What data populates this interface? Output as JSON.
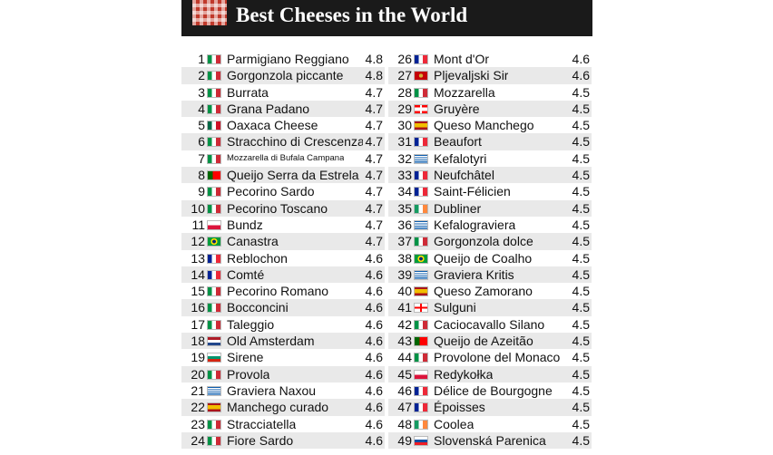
{
  "header": {
    "title": "Best Cheeses in the World"
  },
  "colors": {
    "header_bg": "#1a1a1a",
    "stripe": "#e9e9e9",
    "logo_red": "#c0392b"
  },
  "flags": {
    "IT": "linear-gradient(90deg,#009246 33%,#ffffff 33%,#ffffff 66%,#ce2b37 66%)",
    "FR": "linear-gradient(90deg,#002395 33%,#ffffff 33%,#ffffff 66%,#ed2939 66%)",
    "MX": "linear-gradient(90deg,#006847 33%,#ffffff 33%,#ffffff 66%,#ce1126 66%)",
    "PT": "linear-gradient(90deg,#006600 40%,#ff0000 40%)",
    "PL": "linear-gradient(180deg,#ffffff 50%,#dc143c 50%)",
    "BR": "radial-gradient(circle at 50% 50%,#002776 22%,#fedf00 24%,#fedf00 42%,#009c3b 44%)",
    "NL": "linear-gradient(180deg,#ae1c28 33%,#ffffff 33%,#ffffff 66%,#21468b 66%)",
    "BG": "linear-gradient(180deg,#ffffff 33%,#00966e 33%,#00966e 66%,#d62612 66%)",
    "GR": "repeating-linear-gradient(180deg,#0d5eaf 0px,#0d5eaf 1.2px,#ffffff 1.2px,#ffffff 2.4px)",
    "ES": "linear-gradient(180deg,#aa151b 25%,#f1bf00 25%,#f1bf00 75%,#aa151b 75%)",
    "ME": "radial-gradient(circle,#d4af37 25%,#c40308 28%)",
    "CH": "linear-gradient(90deg,transparent 42%,#ffffff 42%,#ffffff 58%,transparent 58%),linear-gradient(180deg,#ff0000 28%,#ffffff 28%,#ffffff 72%,#ff0000 72%)",
    "IE": "linear-gradient(90deg,#169b62 33%,#ffffff 33%,#ffffff 66%,#ff883e 66%)",
    "GE": "linear-gradient(90deg,transparent 43%,#ff0000 43%,#ff0000 57%,transparent 57%),linear-gradient(180deg,#ffffff 40%,#ff0000 40%,#ff0000 60%,#ffffff 60%)",
    "SK": "linear-gradient(180deg,#ffffff 33%,#0b4ea2 33%,#0b4ea2 66%,#ee1c25 66%)"
  },
  "left_column": [
    {
      "rank": "1",
      "flag": "IT",
      "name": "Parmigiano Reggiano",
      "rating": "4.8"
    },
    {
      "rank": "2",
      "flag": "IT",
      "name": "Gorgonzola piccante",
      "rating": "4.8"
    },
    {
      "rank": "3",
      "flag": "IT",
      "name": "Burrata",
      "rating": "4.7"
    },
    {
      "rank": "4",
      "flag": "IT",
      "name": "Grana Padano",
      "rating": "4.7"
    },
    {
      "rank": "5",
      "flag": "MX",
      "name": "Oaxaca Cheese",
      "rating": "4.7"
    },
    {
      "rank": "6",
      "flag": "IT",
      "name": "Stracchino di Crescenza",
      "rating": "4.7"
    },
    {
      "rank": "7",
      "flag": "IT",
      "name": "Mozzarella di Bufala Campana",
      "rating": "4.7",
      "small": true
    },
    {
      "rank": "8",
      "flag": "PT",
      "name": "Queijo Serra da Estrela",
      "rating": "4.7"
    },
    {
      "rank": "9",
      "flag": "IT",
      "name": "Pecorino Sardo",
      "rating": "4.7"
    },
    {
      "rank": "10",
      "flag": "IT",
      "name": "Pecorino Toscano",
      "rating": "4.7"
    },
    {
      "rank": "11",
      "flag": "PL",
      "name": "Bundz",
      "rating": "4.7"
    },
    {
      "rank": "12",
      "flag": "BR",
      "name": "Canastra",
      "rating": "4.7"
    },
    {
      "rank": "13",
      "flag": "FR",
      "name": "Reblochon",
      "rating": "4.6"
    },
    {
      "rank": "14",
      "flag": "FR",
      "name": "Comté",
      "rating": "4.6"
    },
    {
      "rank": "15",
      "flag": "IT",
      "name": "Pecorino Romano",
      "rating": "4.6"
    },
    {
      "rank": "16",
      "flag": "IT",
      "name": "Bocconcini",
      "rating": "4.6"
    },
    {
      "rank": "17",
      "flag": "IT",
      "name": "Taleggio",
      "rating": "4.6"
    },
    {
      "rank": "18",
      "flag": "NL",
      "name": "Old Amsterdam",
      "rating": "4.6"
    },
    {
      "rank": "19",
      "flag": "BG",
      "name": "Sirene",
      "rating": "4.6"
    },
    {
      "rank": "20",
      "flag": "IT",
      "name": "Provola",
      "rating": "4.6"
    },
    {
      "rank": "21",
      "flag": "GR",
      "name": "Graviera Naxou",
      "rating": "4.6"
    },
    {
      "rank": "22",
      "flag": "ES",
      "name": "Manchego curado",
      "rating": "4.6"
    },
    {
      "rank": "23",
      "flag": "IT",
      "name": "Stracciatella",
      "rating": "4.6"
    },
    {
      "rank": "24",
      "flag": "IT",
      "name": "Fiore Sardo",
      "rating": "4.6"
    }
  ],
  "right_column": [
    {
      "rank": "26",
      "flag": "FR",
      "name": "Mont d'Or",
      "rating": "4.6"
    },
    {
      "rank": "27",
      "flag": "ME",
      "name": "Pljevaljski Sir",
      "rating": "4.6"
    },
    {
      "rank": "28",
      "flag": "IT",
      "name": "Mozzarella",
      "rating": "4.5"
    },
    {
      "rank": "29",
      "flag": "CH",
      "name": "Gruyère",
      "rating": "4.5"
    },
    {
      "rank": "30",
      "flag": "ES",
      "name": "Queso Manchego",
      "rating": "4.5"
    },
    {
      "rank": "31",
      "flag": "FR",
      "name": "Beaufort",
      "rating": "4.5"
    },
    {
      "rank": "32",
      "flag": "GR",
      "name": "Kefalotyri",
      "rating": "4.5"
    },
    {
      "rank": "33",
      "flag": "FR",
      "name": "Neufchâtel",
      "rating": "4.5"
    },
    {
      "rank": "34",
      "flag": "FR",
      "name": "Saint-Félicien",
      "rating": "4.5"
    },
    {
      "rank": "35",
      "flag": "IE",
      "name": "Dubliner",
      "rating": "4.5"
    },
    {
      "rank": "36",
      "flag": "GR",
      "name": "Kefalograviera",
      "rating": "4.5"
    },
    {
      "rank": "37",
      "flag": "IT",
      "name": "Gorgonzola dolce",
      "rating": "4.5"
    },
    {
      "rank": "38",
      "flag": "BR",
      "name": "Queijo de Coalho",
      "rating": "4.5"
    },
    {
      "rank": "39",
      "flag": "GR",
      "name": "Graviera Kritis",
      "rating": "4.5"
    },
    {
      "rank": "40",
      "flag": "ES",
      "name": "Queso Zamorano",
      "rating": "4.5"
    },
    {
      "rank": "41",
      "flag": "GE",
      "name": "Sulguni",
      "rating": "4.5"
    },
    {
      "rank": "42",
      "flag": "IT",
      "name": "Caciocavallo Silano",
      "rating": "4.5"
    },
    {
      "rank": "43",
      "flag": "PT",
      "name": "Queijo de Azeitão",
      "rating": "4.5"
    },
    {
      "rank": "44",
      "flag": "IT",
      "name": "Provolone del Monaco",
      "rating": "4.5"
    },
    {
      "rank": "45",
      "flag": "PL",
      "name": "Redykołka",
      "rating": "4.5"
    },
    {
      "rank": "46",
      "flag": "FR",
      "name": "Délice de Bourgogne",
      "rating": "4.5"
    },
    {
      "rank": "47",
      "flag": "FR",
      "name": "Époisses",
      "rating": "4.5"
    },
    {
      "rank": "48",
      "flag": "IE",
      "name": "Coolea",
      "rating": "4.5"
    },
    {
      "rank": "49",
      "flag": "SK",
      "name": "Slovenská Parenica",
      "rating": "4.5"
    }
  ]
}
